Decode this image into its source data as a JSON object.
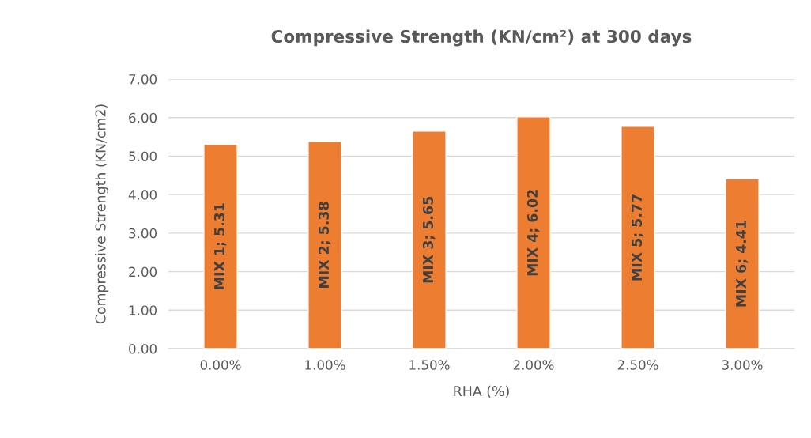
{
  "chart_data": {
    "type": "bar",
    "title": "Compressive Strength (KN/cm²) at 300 days",
    "xlabel": "RHA (%)",
    "ylabel": "Compressive Strength (KN/cm2)",
    "categories": [
      "0.00%",
      "1.00%",
      "1.50%",
      "2.00%",
      "2.50%",
      "3.00%"
    ],
    "values": [
      5.31,
      5.38,
      5.65,
      6.02,
      5.77,
      4.41
    ],
    "value_labels": [
      "MIX 1; 5.31",
      "MIX 2; 5.38",
      "MIX 3; 5.65",
      "MIX 4; 6.02",
      "MIX 5; 5.77",
      "MIX 6; 4.41"
    ],
    "color": "#ed7d31",
    "ylim": [
      0,
      7
    ],
    "yticks": [
      {
        "value": 0,
        "label": "0.00"
      },
      {
        "value": 1,
        "label": "1.00"
      },
      {
        "value": 2,
        "label": "2.00"
      },
      {
        "value": 3,
        "label": "3.00"
      },
      {
        "value": 4,
        "label": "4.00"
      },
      {
        "value": 5,
        "label": "5.00"
      },
      {
        "value": 6,
        "label": "6.00"
      },
      {
        "value": 7,
        "label": "7.00"
      }
    ],
    "grid": "y"
  }
}
